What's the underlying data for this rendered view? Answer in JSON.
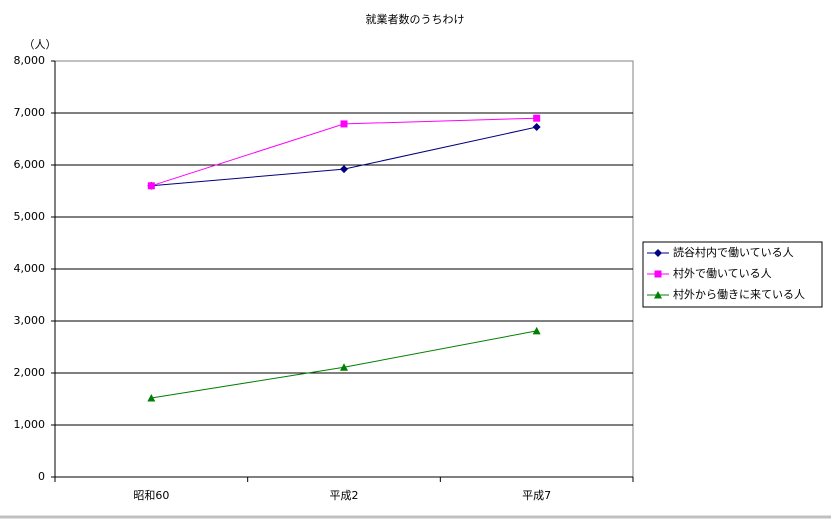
{
  "chart_data": {
    "type": "line",
    "title": "就業者数のうちわけ",
    "y_label": "（人）",
    "categories": [
      "昭和60",
      "平成2",
      "平成7"
    ],
    "series": [
      {
        "name": "読谷村内で働いている人",
        "color": "#000080",
        "marker": "diamond",
        "values": [
          5600,
          5920,
          6730
        ]
      },
      {
        "name": "村外で働いている人",
        "color": "#ff00ff",
        "marker": "square",
        "values": [
          5600,
          6790,
          6900
        ]
      },
      {
        "name": "村外から働きに来ている人",
        "color": "#008000",
        "marker": "triangle",
        "values": [
          1520,
          2110,
          2810
        ]
      }
    ],
    "ylim": [
      0,
      8000
    ],
    "yticks": [
      0,
      {
        "value": 1000,
        "label": "1,000"
      },
      {
        "value": 2000,
        "label": "2,000"
      },
      {
        "value": 3000,
        "label": "3,000"
      },
      {
        "value": 4000,
        "label": "4,000"
      },
      {
        "value": 5000,
        "label": "5,000"
      },
      {
        "value": 6000,
        "label": "6,000"
      },
      {
        "value": 7000,
        "label": "7,000"
      },
      {
        "value": 8000,
        "label": "8,000"
      }
    ],
    "grid": true,
    "legend": "right"
  }
}
